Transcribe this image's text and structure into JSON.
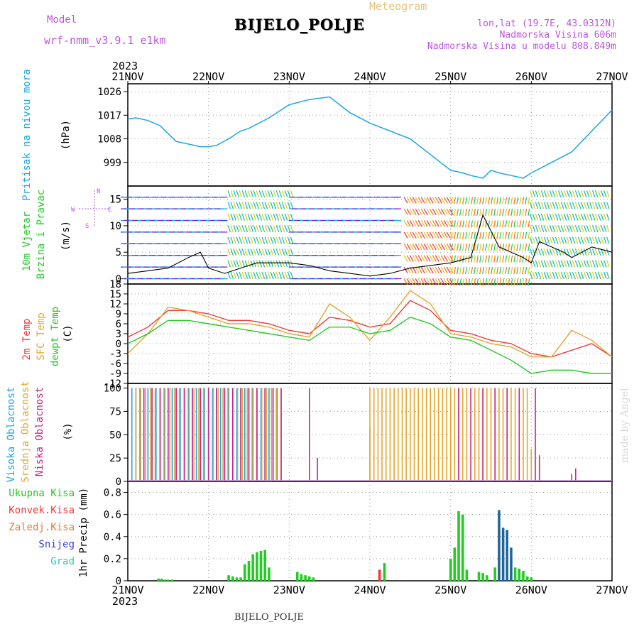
{
  "header": {
    "model_label": "Model",
    "model_name": "wrf-nmm_v3.9.1 e1km",
    "title": "Meteogram",
    "station": "BIJELO_POLJE",
    "location_lines": [
      "lon,lat (19.7E, 43.0312N)",
      "Nadmorska Visina 606m",
      "Nadmorska Visina u modelu 808.849m"
    ],
    "year": "2023",
    "credit": "made by Angel",
    "footer_station": "BIJELO_POLJE"
  },
  "colors": {
    "pressure": "#1aa6e6",
    "temp2m": "#ee3b3b",
    "sfc_temp": "#e6a52e",
    "dewpt": "#22cc22",
    "high_cloud": "#1aa6e6",
    "mid_cloud": "#e6a52e",
    "low_cloud": "#cc2288",
    "purple_text": "#bb55dd",
    "total_precip": "#22cc22",
    "conv_precip": "#ee3b3b",
    "frozen_precip": "#ee7733",
    "snow": "#3b3bdd",
    "hail": "#22ccbb"
  },
  "chart_data": [
    {
      "type": "line",
      "panel": "pressure",
      "ylabel": [
        "Pritisak na nivou mora",
        "(hPa)"
      ],
      "ylim": [
        990,
        1029
      ],
      "yticks": [
        999,
        1008,
        1017,
        1026
      ],
      "xlim": [
        0,
        6
      ],
      "xticks_top": [
        "21NOV",
        "22NOV",
        "23NOV",
        "24NOV",
        "25NOV",
        "26NOV",
        "27NOV"
      ],
      "grid": true,
      "x": [
        0,
        0.1,
        0.25,
        0.4,
        0.5,
        0.6,
        0.75,
        0.9,
        1.0,
        1.1,
        1.25,
        1.4,
        1.5,
        1.75,
        2.0,
        2.25,
        2.5,
        2.75,
        3.0,
        3.25,
        3.5,
        3.75,
        4.0,
        4.15,
        4.25,
        4.4,
        4.5,
        4.6,
        4.75,
        4.9,
        5.0,
        5.25,
        5.5,
        5.75,
        6.0
      ],
      "series": [
        {
          "values": [
            1015.5,
            1016,
            1015,
            1013,
            1010,
            1007,
            1006,
            1005,
            1005,
            1005.5,
            1008,
            1011,
            1012,
            1016,
            1021,
            1023,
            1024,
            1018,
            1014,
            1011,
            1008,
            1002,
            996,
            995,
            994,
            993,
            996,
            995,
            994,
            993,
            995,
            999,
            1003,
            1011,
            1019
          ]
        }
      ]
    },
    {
      "type": "line",
      "panel": "wind",
      "ylabel": [
        "10m Vjetar",
        "Brzina i Pravac",
        "(m/s)"
      ],
      "ylim": [
        -1,
        17.5
      ],
      "yticks": [
        0,
        5,
        10,
        15
      ],
      "compass": {
        "n": "N",
        "s": "S",
        "e": "E",
        "w": "W"
      },
      "grid": true,
      "x": [
        0,
        0.25,
        0.5,
        0.75,
        0.9,
        1.0,
        1.2,
        1.4,
        1.6,
        2.0,
        2.25,
        2.5,
        2.75,
        3.0,
        3.25,
        3.5,
        3.75,
        4.0,
        4.25,
        4.4,
        4.5,
        4.6,
        4.75,
        4.9,
        5.0,
        5.1,
        5.25,
        5.4,
        5.5,
        5.75,
        6.0
      ],
      "series": [
        {
          "name": "speed",
          "values": [
            1,
            1.5,
            2,
            4,
            5,
            2,
            1,
            2,
            3,
            3,
            2.5,
            1.5,
            1,
            0.5,
            1,
            2,
            2.5,
            3,
            4,
            12,
            9,
            6,
            5,
            4,
            3,
            7,
            6,
            5,
            4,
            6,
            5
          ]
        }
      ]
    },
    {
      "type": "line",
      "panel": "temperature",
      "ylabel": [
        "2m Temp",
        "SFC Temp",
        "dewpt Temp",
        "(C)"
      ],
      "ylim": [
        -12,
        18
      ],
      "yticks": [
        -12,
        -9,
        -6,
        -3,
        0,
        3,
        6,
        9,
        12,
        15,
        18
      ],
      "grid": true,
      "x": [
        0,
        0.25,
        0.5,
        0.75,
        1.0,
        1.25,
        1.5,
        1.75,
        2.0,
        2.25,
        2.5,
        2.75,
        3.0,
        3.25,
        3.5,
        3.75,
        4.0,
        4.25,
        4.5,
        4.75,
        5.0,
        5.25,
        5.5,
        5.75,
        6.0
      ],
      "series": [
        {
          "name": "2m Temp",
          "values": [
            2,
            5,
            10,
            10,
            9,
            7,
            7,
            6,
            4,
            3,
            8,
            7,
            5,
            6,
            13,
            10,
            4,
            3,
            1,
            0,
            -3,
            -4,
            -2,
            0,
            -4
          ]
        },
        {
          "name": "SFC Temp",
          "values": [
            -3,
            3,
            11,
            10,
            8,
            6,
            6,
            5,
            3,
            2,
            12,
            8,
            1,
            8,
            16,
            12,
            3,
            2,
            0,
            -1,
            -4,
            -4,
            4,
            1,
            -4
          ]
        },
        {
          "name": "dewpt Temp",
          "values": [
            0,
            3,
            7,
            7,
            6,
            5,
            4,
            3,
            2,
            1,
            5,
            5,
            3,
            4,
            8,
            6,
            2,
            1,
            -2,
            -5,
            -9,
            -8,
            -8,
            -9,
            -9
          ]
        }
      ]
    },
    {
      "type": "bar",
      "panel": "cloud",
      "ylabel": [
        "Visoka Oblacnost",
        "Srednja Oblacnost",
        "Niska Oblacnost",
        "(%)"
      ],
      "ylim": [
        0,
        105
      ],
      "yticks": [
        0,
        25,
        50,
        75,
        100
      ],
      "grid": true,
      "segments": [
        {
          "name": "Visoka Oblacnost",
          "start": 0.05,
          "end": 1.85,
          "step": 0.05,
          "value": 100
        },
        {
          "name": "Srednja Oblacnost",
          "start": 0.1,
          "end": 1.9,
          "step": 0.06,
          "value": 100
        },
        {
          "name": "Niska Oblacnost",
          "start": 0.2,
          "end": 1.9,
          "step": 0.1,
          "value": 100
        },
        {
          "name": "Srednja Oblacnost",
          "start": 3.0,
          "end": 4.2,
          "step": 0.05,
          "value": 100
        },
        {
          "name": "Srednja Oblacnost",
          "start": 4.3,
          "end": 4.95,
          "step": 0.05,
          "value": 100
        },
        {
          "name": "Niska Oblacnost",
          "start": 4.1,
          "end": 4.9,
          "step": 0.15,
          "value": 100
        }
      ],
      "extras": [
        {
          "name": "Niska Oblacnost",
          "x": 2.25,
          "value": 100
        },
        {
          "name": "Niska Oblacnost",
          "x": 2.35,
          "value": 25
        },
        {
          "name": "Srednja Oblacnost",
          "x": 3.0,
          "value": 58
        },
        {
          "name": "Niska Oblacnost",
          "x": 5.05,
          "value": 100
        },
        {
          "name": "Niska Oblacnost",
          "x": 5.1,
          "value": 28
        },
        {
          "name": "Srednja Oblacnost",
          "x": 5.0,
          "value": 35
        },
        {
          "name": "Niska Oblacnost",
          "x": 5.5,
          "value": 8
        },
        {
          "name": "Niska Oblacnost",
          "x": 5.55,
          "value": 14
        }
      ]
    },
    {
      "type": "bar",
      "panel": "precip",
      "ylabel": [
        "Ukupna Kisa",
        "Konvek.Kisa",
        "Zaledj.Kisa",
        "Snijeg",
        "Grad",
        "1hr Precip (mm)"
      ],
      "ylim": [
        0,
        0.9
      ],
      "yticks": [
        0,
        0.2,
        0.4,
        0.6,
        0.8
      ],
      "xticks_bottom": [
        "21NOV",
        "22NOV",
        "23NOV",
        "24NOV",
        "25NOV",
        "26NOV",
        "27NOV"
      ],
      "grid": true,
      "bars": [
        {
          "x": 0.38,
          "value": 0.02,
          "series": "Ukupna Kisa"
        },
        {
          "x": 0.42,
          "value": 0.02,
          "series": "Ukupna Kisa"
        },
        {
          "x": 0.46,
          "value": 0.01,
          "series": "Ukupna Kisa"
        },
        {
          "x": 0.5,
          "value": 0.01,
          "series": "Ukupna Kisa"
        },
        {
          "x": 0.55,
          "value": 0.01,
          "series": "Ukupna Kisa"
        },
        {
          "x": 1.25,
          "value": 0.05,
          "series": "Ukupna Kisa"
        },
        {
          "x": 1.3,
          "value": 0.04,
          "series": "Ukupna Kisa"
        },
        {
          "x": 1.35,
          "value": 0.03,
          "series": "Ukupna Kisa"
        },
        {
          "x": 1.4,
          "value": 0.03,
          "series": "Ukupna Kisa"
        },
        {
          "x": 1.45,
          "value": 0.15,
          "series": "Ukupna Kisa"
        },
        {
          "x": 1.5,
          "value": 0.18,
          "series": "Ukupna Kisa"
        },
        {
          "x": 1.55,
          "value": 0.24,
          "series": "Ukupna Kisa"
        },
        {
          "x": 1.6,
          "value": 0.26,
          "series": "Ukupna Kisa"
        },
        {
          "x": 1.65,
          "value": 0.27,
          "series": "Ukupna Kisa"
        },
        {
          "x": 1.7,
          "value": 0.28,
          "series": "Ukupna Kisa"
        },
        {
          "x": 1.75,
          "value": 0.12,
          "series": "Ukupna Kisa"
        },
        {
          "x": 2.1,
          "value": 0.08,
          "series": "Ukupna Kisa"
        },
        {
          "x": 2.15,
          "value": 0.06,
          "series": "Ukupna Kisa"
        },
        {
          "x": 2.2,
          "value": 0.05,
          "series": "Ukupna Kisa"
        },
        {
          "x": 2.25,
          "value": 0.04,
          "series": "Ukupna Kisa"
        },
        {
          "x": 2.3,
          "value": 0.03,
          "series": "Ukupna Kisa"
        },
        {
          "x": 3.12,
          "value": 0.1,
          "series": "Konvek.Kisa"
        },
        {
          "x": 3.18,
          "value": 0.16,
          "series": "Ukupna Kisa"
        },
        {
          "x": 4.0,
          "value": 0.2,
          "series": "Ukupna Kisa"
        },
        {
          "x": 4.05,
          "value": 0.3,
          "series": "Ukupna Kisa"
        },
        {
          "x": 4.1,
          "value": 0.63,
          "series": "Ukupna Kisa"
        },
        {
          "x": 4.15,
          "value": 0.6,
          "series": "Ukupna Kisa"
        },
        {
          "x": 4.2,
          "value": 0.1,
          "series": "Ukupna Kisa"
        },
        {
          "x": 4.35,
          "value": 0.08,
          "series": "Ukupna Kisa"
        },
        {
          "x": 4.4,
          "value": 0.07,
          "series": "Ukupna Kisa"
        },
        {
          "x": 4.45,
          "value": 0.05,
          "series": "Ukupna Kisa"
        },
        {
          "x": 4.55,
          "value": 0.12,
          "series": "Ukupna Kisa"
        },
        {
          "x": 4.6,
          "value": 0.64,
          "series": "Ukupna Kisa"
        },
        {
          "x": 4.65,
          "value": 0.48,
          "series": "Ukupna Kisa"
        },
        {
          "x": 4.7,
          "value": 0.46,
          "series": "Ukupna Kisa"
        },
        {
          "x": 4.75,
          "value": 0.3,
          "series": "Ukupna Kisa"
        },
        {
          "x": 4.8,
          "value": 0.12,
          "series": "Ukupna Kisa"
        },
        {
          "x": 4.85,
          "value": 0.11,
          "series": "Ukupna Kisa"
        },
        {
          "x": 4.9,
          "value": 0.09,
          "series": "Ukupna Kisa"
        },
        {
          "x": 4.95,
          "value": 0.04,
          "series": "Ukupna Kisa"
        },
        {
          "x": 5.0,
          "value": 0.03,
          "series": "Ukupna Kisa"
        }
      ]
    }
  ]
}
